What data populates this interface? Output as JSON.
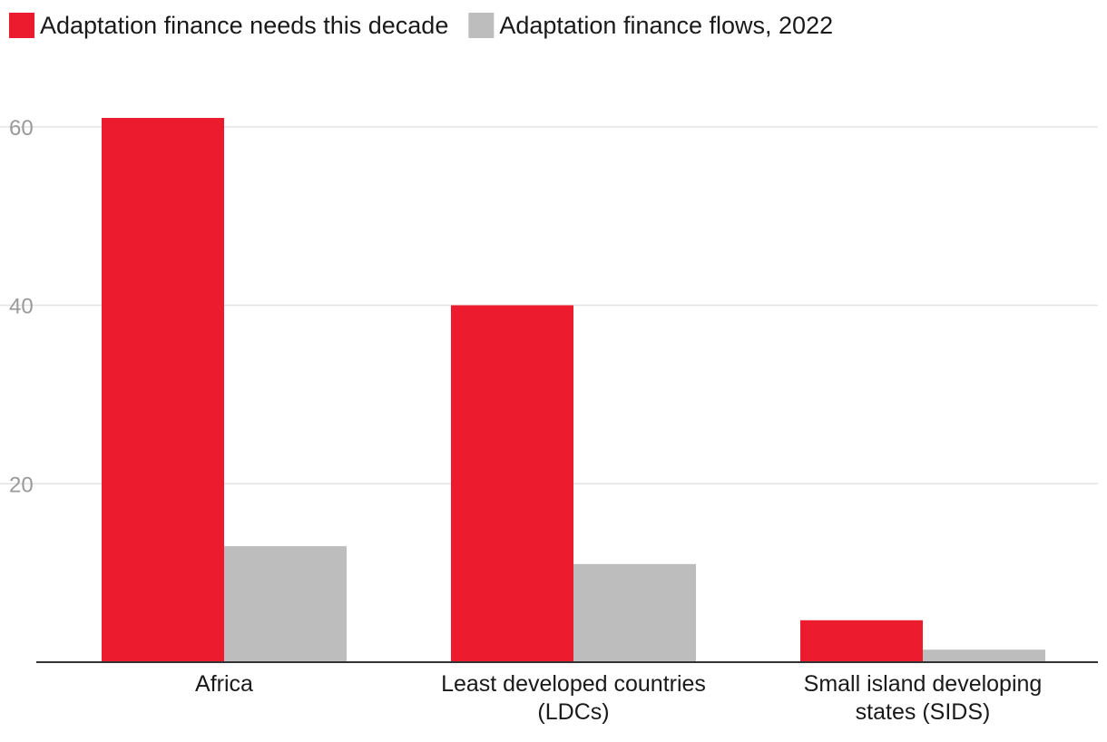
{
  "chart_data": {
    "type": "bar",
    "title": "",
    "xlabel": "",
    "ylabel": "",
    "ylim": [
      0,
      61
    ],
    "yticks": [
      20,
      40,
      60
    ],
    "grid": true,
    "legend_position": "top-left",
    "categories": [
      [
        "Africa"
      ],
      [
        "Least developed countries",
        "(LDCs)"
      ],
      [
        "Small island developing",
        "states (SIDS)"
      ]
    ],
    "series": [
      {
        "name": "Adaptation finance needs this decade",
        "color": "#ed1b2e",
        "values": [
          61,
          40,
          4.7
        ]
      },
      {
        "name": "Adaptation finance flows, 2022",
        "color": "#bdbdbd",
        "values": [
          13,
          11,
          1.4
        ]
      }
    ]
  }
}
